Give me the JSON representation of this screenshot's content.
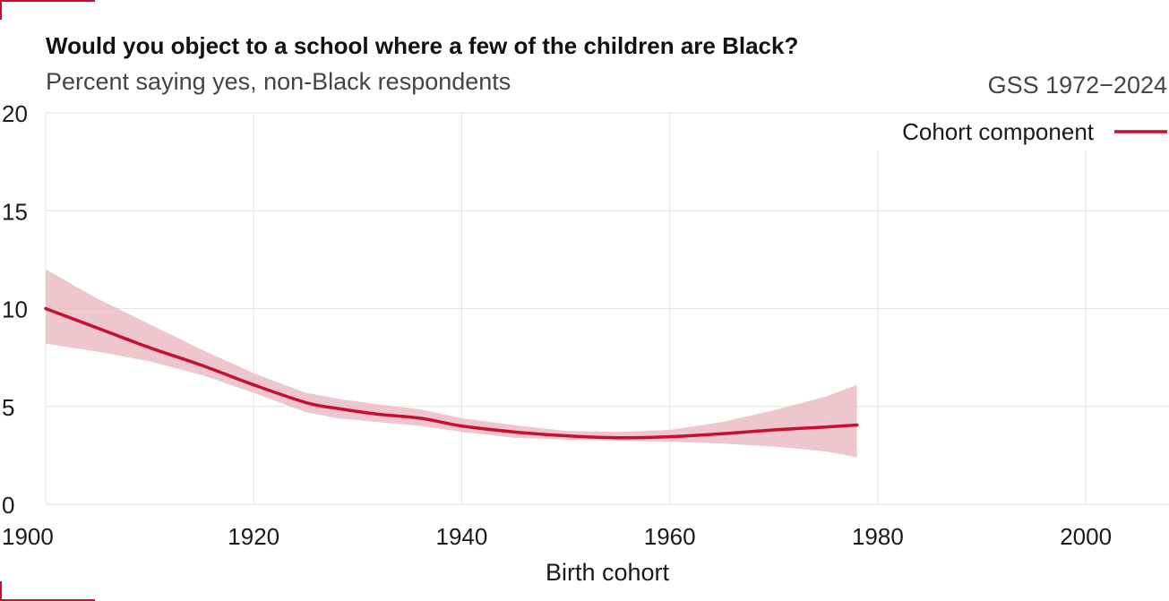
{
  "header": {
    "title": "Would you object to a school where a few of the children are Black?",
    "subtitle": "Percent saying yes, non-Black respondents",
    "source": "GSS 1972−2024"
  },
  "colors": {
    "accent": "#c8102e",
    "band": "#e8b4bd",
    "grid": "#e3e3e3"
  },
  "chart_data": {
    "type": "line",
    "title": "Would you object to a school where a few of the children are Black?",
    "subtitle": "Percent saying yes, non-Black respondents",
    "xlabel": "Birth cohort",
    "ylabel": "",
    "xlim": [
      1900,
      2008
    ],
    "ylim": [
      0,
      20
    ],
    "x_ticks": [
      1900,
      1920,
      1940,
      1960,
      1980,
      2000
    ],
    "y_ticks": [
      0,
      5,
      10,
      15,
      20
    ],
    "grid": true,
    "legend_position": "top-right",
    "series": [
      {
        "name": "Cohort component",
        "x": [
          1900,
          1905,
          1910,
          1915,
          1920,
          1925,
          1928,
          1932,
          1936,
          1940,
          1945,
          1950,
          1955,
          1960,
          1965,
          1970,
          1975,
          1978
        ],
        "y": [
          10.0,
          9.0,
          8.0,
          7.1,
          6.1,
          5.2,
          4.9,
          4.6,
          4.4,
          4.0,
          3.7,
          3.5,
          3.4,
          3.45,
          3.6,
          3.8,
          3.95,
          4.05
        ],
        "lower": [
          8.2,
          7.8,
          7.3,
          6.6,
          5.7,
          4.7,
          4.4,
          4.2,
          4.0,
          3.7,
          3.4,
          3.3,
          3.25,
          3.2,
          3.1,
          2.95,
          2.7,
          2.4
        ],
        "upper": [
          12.0,
          10.5,
          9.2,
          7.9,
          6.7,
          5.7,
          5.4,
          5.1,
          4.85,
          4.4,
          4.05,
          3.75,
          3.7,
          3.8,
          4.2,
          4.8,
          5.5,
          6.1
        ]
      }
    ]
  }
}
